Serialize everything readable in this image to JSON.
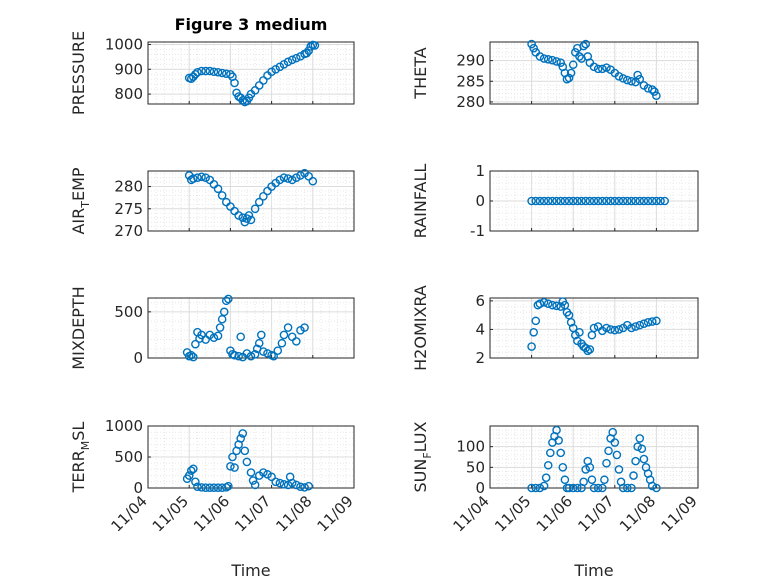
{
  "figure": {
    "title": "Figure 3 medium",
    "marker_color": "#0072BD",
    "axes_color": "#262626"
  },
  "chart_data": [
    {
      "type": "scatter",
      "title": "Figure 3 medium",
      "ylabel_base": "PRESSURE",
      "ylabel_sub": "",
      "ylabel_tail": "",
      "ylim": [
        760,
        1010
      ],
      "yticks": [
        800,
        900,
        1000
      ],
      "xlim": [
        0,
        5
      ],
      "grid": true,
      "x_ticks_shown": false,
      "points": [
        [
          1,
          865
        ],
        [
          1.05,
          862
        ],
        [
          1.1,
          870
        ],
        [
          1.15,
          880
        ],
        [
          1.2,
          888
        ],
        [
          1.3,
          893
        ],
        [
          1.4,
          893
        ],
        [
          1.5,
          893
        ],
        [
          1.6,
          890
        ],
        [
          1.7,
          888
        ],
        [
          1.8,
          885
        ],
        [
          1.9,
          882
        ],
        [
          2,
          880
        ],
        [
          2.05,
          870
        ],
        [
          2.1,
          845
        ],
        [
          2.15,
          805
        ],
        [
          2.2,
          790
        ],
        [
          2.25,
          785
        ],
        [
          2.3,
          775
        ],
        [
          2.35,
          768
        ],
        [
          2.4,
          772
        ],
        [
          2.45,
          785
        ],
        [
          2.5,
          800
        ],
        [
          2.6,
          815
        ],
        [
          2.7,
          835
        ],
        [
          2.8,
          855
        ],
        [
          2.9,
          875
        ],
        [
          3,
          890
        ],
        [
          3.1,
          900
        ],
        [
          3.2,
          910
        ],
        [
          3.3,
          920
        ],
        [
          3.4,
          930
        ],
        [
          3.5,
          938
        ],
        [
          3.6,
          945
        ],
        [
          3.7,
          952
        ],
        [
          3.8,
          962
        ],
        [
          3.85,
          965
        ],
        [
          3.9,
          975
        ],
        [
          3.95,
          992
        ],
        [
          4,
          998
        ],
        [
          4.05,
          996
        ]
      ]
    },
    {
      "type": "scatter",
      "title": "",
      "ylabel_base": "THETA",
      "ylabel_sub": "",
      "ylabel_tail": "",
      "ylim": [
        279.5,
        294.5
      ],
      "yticks": [
        280,
        285,
        290
      ],
      "xlim": [
        0,
        5
      ],
      "grid": true,
      "x_ticks_shown": false,
      "points": [
        [
          1,
          294
        ],
        [
          1.05,
          293
        ],
        [
          1.1,
          292
        ],
        [
          1.2,
          291
        ],
        [
          1.3,
          290.5
        ],
        [
          1.4,
          290.3
        ],
        [
          1.5,
          290.1
        ],
        [
          1.6,
          289.8
        ],
        [
          1.7,
          289.5
        ],
        [
          1.75,
          288.5
        ],
        [
          1.8,
          287
        ],
        [
          1.85,
          285.5
        ],
        [
          1.9,
          285.8
        ],
        [
          1.95,
          287
        ],
        [
          2,
          289
        ],
        [
          2.05,
          292
        ],
        [
          2.1,
          293
        ],
        [
          2.15,
          291
        ],
        [
          2.2,
          290.5
        ],
        [
          2.25,
          293.5
        ],
        [
          2.3,
          294
        ],
        [
          2.35,
          291
        ],
        [
          2.4,
          289.5
        ],
        [
          2.5,
          288.5
        ],
        [
          2.6,
          288
        ],
        [
          2.7,
          288
        ],
        [
          2.8,
          288.3
        ],
        [
          2.9,
          287.8
        ],
        [
          3,
          287
        ],
        [
          3.1,
          286.2
        ],
        [
          3.2,
          285.7
        ],
        [
          3.3,
          285.3
        ],
        [
          3.4,
          285
        ],
        [
          3.5,
          284.8
        ],
        [
          3.55,
          286.5
        ],
        [
          3.6,
          285.5
        ],
        [
          3.7,
          284
        ],
        [
          3.8,
          283.3
        ],
        [
          3.9,
          283
        ],
        [
          3.95,
          282.5
        ],
        [
          4,
          281.5
        ]
      ]
    },
    {
      "type": "scatter",
      "title": "",
      "ylabel_base": "AIR",
      "ylabel_sub": "T",
      "ylabel_tail": "EMP",
      "ylim": [
        270,
        283.5
      ],
      "yticks": [
        270,
        275,
        280
      ],
      "xlim": [
        0,
        5
      ],
      "grid": true,
      "x_ticks_shown": false,
      "points": [
        [
          1,
          282.5
        ],
        [
          1.05,
          281.5
        ],
        [
          1.1,
          281.8
        ],
        [
          1.2,
          282
        ],
        [
          1.3,
          282.2
        ],
        [
          1.4,
          282
        ],
        [
          1.5,
          281.5
        ],
        [
          1.6,
          280.5
        ],
        [
          1.7,
          279.5
        ],
        [
          1.8,
          278
        ],
        [
          1.9,
          276.5
        ],
        [
          2,
          275.5
        ],
        [
          2.1,
          274.5
        ],
        [
          2.2,
          273.5
        ],
        [
          2.3,
          273
        ],
        [
          2.35,
          272
        ],
        [
          2.4,
          272.8
        ],
        [
          2.45,
          273.5
        ],
        [
          2.5,
          272.5
        ],
        [
          2.6,
          275
        ],
        [
          2.7,
          276.5
        ],
        [
          2.8,
          277.8
        ],
        [
          2.9,
          279
        ],
        [
          3,
          280
        ],
        [
          3.1,
          280.8
        ],
        [
          3.2,
          281.5
        ],
        [
          3.3,
          282
        ],
        [
          3.4,
          281.8
        ],
        [
          3.5,
          281.5
        ],
        [
          3.6,
          282
        ],
        [
          3.7,
          282.5
        ],
        [
          3.8,
          283
        ],
        [
          3.9,
          282.3
        ],
        [
          4,
          281.2
        ]
      ]
    },
    {
      "type": "scatter",
      "title": "",
      "ylabel_base": "RAINFALL",
      "ylabel_sub": "",
      "ylabel_tail": "",
      "ylim": [
        -1,
        1
      ],
      "yticks": [
        -1,
        0,
        1
      ],
      "xlim": [
        0,
        5
      ],
      "grid": true,
      "x_ticks_shown": false,
      "points": [
        [
          1,
          0
        ],
        [
          1.1,
          0
        ],
        [
          1.2,
          0
        ],
        [
          1.3,
          0
        ],
        [
          1.4,
          0
        ],
        [
          1.5,
          0
        ],
        [
          1.6,
          0
        ],
        [
          1.7,
          0
        ],
        [
          1.8,
          0
        ],
        [
          1.9,
          0
        ],
        [
          2,
          0
        ],
        [
          2.1,
          0
        ],
        [
          2.2,
          0
        ],
        [
          2.3,
          0
        ],
        [
          2.4,
          0
        ],
        [
          2.5,
          0
        ],
        [
          2.6,
          0
        ],
        [
          2.7,
          0
        ],
        [
          2.8,
          0
        ],
        [
          2.9,
          0
        ],
        [
          3,
          0
        ],
        [
          3.1,
          0
        ],
        [
          3.2,
          0
        ],
        [
          3.3,
          0
        ],
        [
          3.4,
          0
        ],
        [
          3.5,
          0
        ],
        [
          3.6,
          0
        ],
        [
          3.7,
          0
        ],
        [
          3.8,
          0
        ],
        [
          3.9,
          0
        ],
        [
          4,
          0
        ],
        [
          4.1,
          0
        ],
        [
          4.2,
          0
        ]
      ]
    },
    {
      "type": "scatter",
      "title": "",
      "ylabel_base": "MIXDEPTH",
      "ylabel_sub": "",
      "ylabel_tail": "",
      "ylim": [
        0,
        650
      ],
      "yticks": [
        0,
        500
      ],
      "xlim": [
        0,
        5
      ],
      "grid": true,
      "x_ticks_shown": false,
      "points": [
        [
          0.95,
          60
        ],
        [
          1,
          20
        ],
        [
          1.05,
          30
        ],
        [
          1.1,
          10
        ],
        [
          1.15,
          150
        ],
        [
          1.2,
          280
        ],
        [
          1.25,
          210
        ],
        [
          1.3,
          250
        ],
        [
          1.4,
          200
        ],
        [
          1.5,
          250
        ],
        [
          1.6,
          220
        ],
        [
          1.7,
          240
        ],
        [
          1.75,
          330
        ],
        [
          1.8,
          420
        ],
        [
          1.85,
          500
        ],
        [
          1.9,
          620
        ],
        [
          1.95,
          640
        ],
        [
          2,
          80
        ],
        [
          2.05,
          40
        ],
        [
          2.1,
          30
        ],
        [
          2.2,
          20
        ],
        [
          2.25,
          230
        ],
        [
          2.3,
          10
        ],
        [
          2.4,
          50
        ],
        [
          2.5,
          20
        ],
        [
          2.6,
          40
        ],
        [
          2.65,
          100
        ],
        [
          2.7,
          160
        ],
        [
          2.75,
          250
        ],
        [
          2.8,
          70
        ],
        [
          2.9,
          50
        ],
        [
          3,
          30
        ],
        [
          3.05,
          20
        ],
        [
          3.15,
          80
        ],
        [
          3.25,
          160
        ],
        [
          3.3,
          250
        ],
        [
          3.4,
          330
        ],
        [
          3.5,
          230
        ],
        [
          3.6,
          180
        ],
        [
          3.7,
          300
        ],
        [
          3.8,
          330
        ]
      ]
    },
    {
      "type": "scatter",
      "title": "",
      "ylabel_base": "H2OMIXRA",
      "ylabel_sub": "",
      "ylabel_tail": "",
      "ylim": [
        2,
        6.2
      ],
      "yticks": [
        2,
        4,
        6
      ],
      "xlim": [
        0,
        5
      ],
      "grid": true,
      "x_ticks_shown": false,
      "points": [
        [
          1,
          2.8
        ],
        [
          1.05,
          3.8
        ],
        [
          1.1,
          4.6
        ],
        [
          1.15,
          5.7
        ],
        [
          1.2,
          5.8
        ],
        [
          1.3,
          5.9
        ],
        [
          1.4,
          5.8
        ],
        [
          1.5,
          5.7
        ],
        [
          1.6,
          5.65
        ],
        [
          1.7,
          5.6
        ],
        [
          1.75,
          5.95
        ],
        [
          1.8,
          5.7
        ],
        [
          1.85,
          5.2
        ],
        [
          1.9,
          5
        ],
        [
          1.95,
          4.5
        ],
        [
          2,
          4.1
        ],
        [
          2.05,
          3.6
        ],
        [
          2.1,
          3.2
        ],
        [
          2.15,
          3.8
        ],
        [
          2.2,
          3
        ],
        [
          2.25,
          2.8
        ],
        [
          2.3,
          2.7
        ],
        [
          2.35,
          2.5
        ],
        [
          2.4,
          2.6
        ],
        [
          2.45,
          3.6
        ],
        [
          2.5,
          4.1
        ],
        [
          2.6,
          4.2
        ],
        [
          2.7,
          3.9
        ],
        [
          2.8,
          4.1
        ],
        [
          2.9,
          4
        ],
        [
          3,
          3.95
        ],
        [
          3.1,
          4
        ],
        [
          3.2,
          4.1
        ],
        [
          3.3,
          4.3
        ],
        [
          3.4,
          4.1
        ],
        [
          3.5,
          4.2
        ],
        [
          3.6,
          4.3
        ],
        [
          3.7,
          4.4
        ],
        [
          3.8,
          4.5
        ],
        [
          3.9,
          4.55
        ],
        [
          4,
          4.6
        ]
      ]
    },
    {
      "type": "scatter",
      "title": "",
      "ylabel_base": "TERR",
      "ylabel_sub": "M",
      "ylabel_tail": "SL",
      "ylim": [
        0,
        1000
      ],
      "yticks": [
        0,
        500,
        1000
      ],
      "xlim": [
        0,
        5
      ],
      "grid": true,
      "x_ticks_shown": true,
      "xtick_labels": [
        "11/04",
        "11/05",
        "11/06",
        "11/07",
        "11/08",
        "11/09"
      ],
      "xlabel": "Time",
      "points": [
        [
          0.95,
          150
        ],
        [
          1,
          200
        ],
        [
          1.05,
          280
        ],
        [
          1.1,
          310
        ],
        [
          1.15,
          100
        ],
        [
          1.2,
          20
        ],
        [
          1.3,
          10
        ],
        [
          1.4,
          5
        ],
        [
          1.5,
          5
        ],
        [
          1.6,
          5
        ],
        [
          1.7,
          5
        ],
        [
          1.8,
          5
        ],
        [
          1.9,
          10
        ],
        [
          1.95,
          30
        ],
        [
          2,
          350
        ],
        [
          2.05,
          500
        ],
        [
          2.1,
          330
        ],
        [
          2.15,
          600
        ],
        [
          2.2,
          700
        ],
        [
          2.25,
          800
        ],
        [
          2.3,
          880
        ],
        [
          2.35,
          600
        ],
        [
          2.4,
          420
        ],
        [
          2.5,
          250
        ],
        [
          2.55,
          120
        ],
        [
          2.6,
          50
        ],
        [
          2.7,
          200
        ],
        [
          2.8,
          250
        ],
        [
          2.9,
          220
        ],
        [
          3,
          180
        ],
        [
          3.1,
          100
        ],
        [
          3.2,
          80
        ],
        [
          3.3,
          60
        ],
        [
          3.4,
          50
        ],
        [
          3.45,
          180
        ],
        [
          3.5,
          80
        ],
        [
          3.6,
          50
        ],
        [
          3.7,
          20
        ],
        [
          3.8,
          10
        ],
        [
          3.9,
          30
        ]
      ]
    },
    {
      "type": "scatter",
      "title": "",
      "ylabel_base": "SUN",
      "ylabel_sub": "F",
      "ylabel_tail": "LUX",
      "ylim": [
        0,
        150
      ],
      "yticks": [
        0,
        50,
        100
      ],
      "xlim": [
        0,
        5
      ],
      "grid": true,
      "x_ticks_shown": true,
      "xtick_labels": [
        "11/04",
        "11/05",
        "11/06",
        "11/07",
        "11/08",
        "11/09"
      ],
      "xlabel": "Time",
      "points": [
        [
          1,
          0
        ],
        [
          1.1,
          0
        ],
        [
          1.2,
          0
        ],
        [
          1.3,
          5
        ],
        [
          1.35,
          25
        ],
        [
          1.4,
          55
        ],
        [
          1.45,
          85
        ],
        [
          1.5,
          110
        ],
        [
          1.55,
          125
        ],
        [
          1.6,
          140
        ],
        [
          1.65,
          115
        ],
        [
          1.7,
          85
        ],
        [
          1.75,
          50
        ],
        [
          1.8,
          20
        ],
        [
          1.85,
          0
        ],
        [
          1.9,
          0
        ],
        [
          2,
          0
        ],
        [
          2.1,
          0
        ],
        [
          2.2,
          0
        ],
        [
          2.25,
          15
        ],
        [
          2.3,
          45
        ],
        [
          2.35,
          65
        ],
        [
          2.4,
          50
        ],
        [
          2.45,
          20
        ],
        [
          2.5,
          0
        ],
        [
          2.6,
          0
        ],
        [
          2.7,
          0
        ],
        [
          2.75,
          20
        ],
        [
          2.8,
          60
        ],
        [
          2.85,
          90
        ],
        [
          2.9,
          120
        ],
        [
          2.95,
          135
        ],
        [
          3,
          110
        ],
        [
          3.05,
          80
        ],
        [
          3.1,
          45
        ],
        [
          3.15,
          15
        ],
        [
          3.2,
          0
        ],
        [
          3.3,
          0
        ],
        [
          3.4,
          0
        ],
        [
          3.45,
          30
        ],
        [
          3.5,
          65
        ],
        [
          3.55,
          100
        ],
        [
          3.6,
          120
        ],
        [
          3.65,
          95
        ],
        [
          3.7,
          70
        ],
        [
          3.75,
          50
        ],
        [
          3.8,
          35
        ],
        [
          3.85,
          20
        ],
        [
          3.9,
          5
        ],
        [
          4,
          0
        ]
      ]
    }
  ]
}
